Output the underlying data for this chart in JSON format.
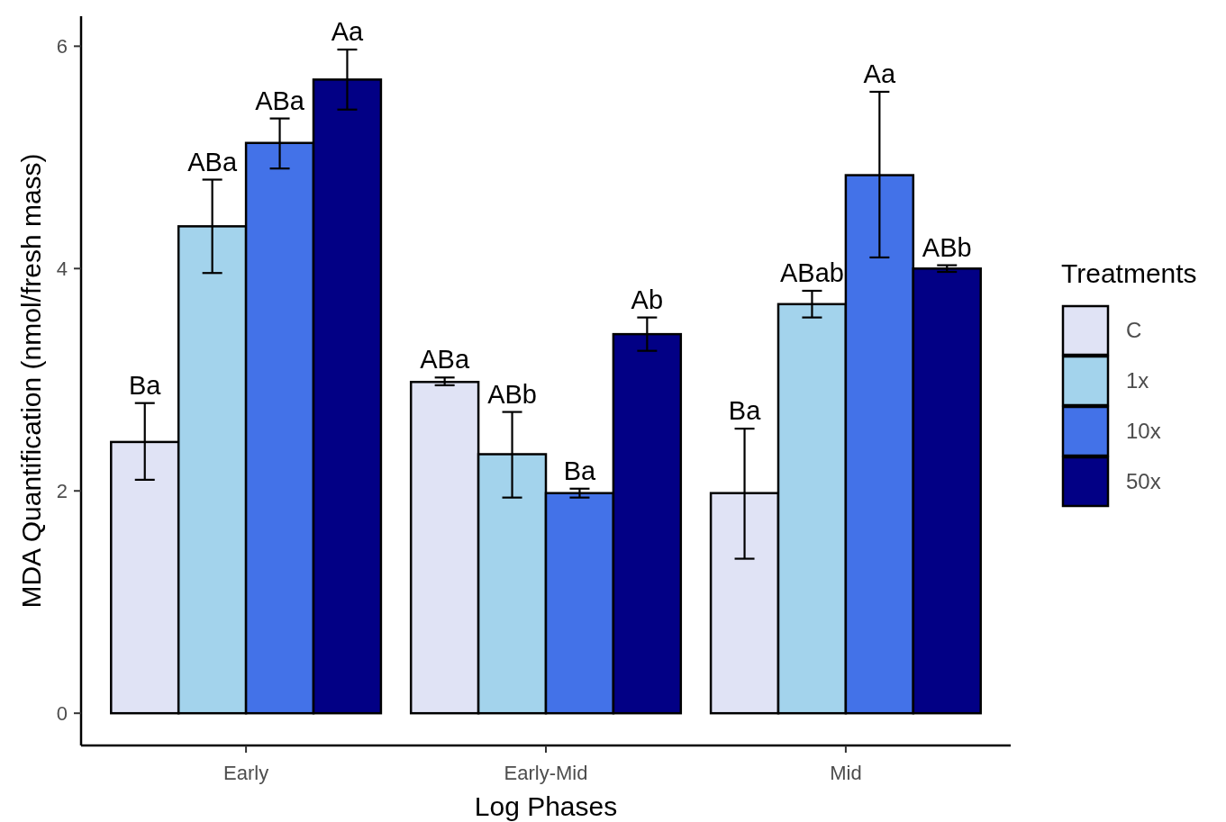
{
  "chart_data": {
    "type": "bar",
    "xlabel": "Log Phases",
    "ylabel": "MDA Quantification (nmol/fresh mass)",
    "legend_title": "Treatments",
    "legend": "right",
    "categories": [
      "Early",
      "Early-Mid",
      "Mid"
    ],
    "series": [
      {
        "name": "C",
        "color": "#e0e3f5",
        "values": [
          2.44,
          2.98,
          1.98
        ],
        "errors": [
          [
            2.1,
            2.79
          ],
          [
            2.95,
            3.02
          ],
          [
            1.39,
            2.56
          ]
        ]
      },
      {
        "name": "1x",
        "color": "#a3d3ec",
        "values": [
          4.38,
          2.33,
          3.68
        ],
        "errors": [
          [
            3.96,
            4.8
          ],
          [
            1.94,
            2.71
          ],
          [
            3.56,
            3.8
          ]
        ]
      },
      {
        "name": "10x",
        "color": "#4372e8",
        "values": [
          5.13,
          1.98,
          4.84
        ],
        "errors": [
          [
            4.9,
            5.35
          ],
          [
            1.94,
            2.02
          ],
          [
            4.1,
            5.59
          ]
        ]
      },
      {
        "name": "50x",
        "color": "#020085",
        "values": [
          5.7,
          3.41,
          4.0
        ],
        "errors": [
          [
            5.43,
            5.97
          ],
          [
            3.26,
            3.56
          ],
          [
            3.97,
            4.03
          ]
        ]
      }
    ],
    "annotations": [
      "Ba",
      "ABa",
      "ABa",
      "Aa",
      "ABa",
      "ABb",
      "Ba",
      "Ab",
      "Ba",
      "ABab",
      "Aa",
      "ABb"
    ],
    "ylim": [
      -0.29,
      6.27
    ],
    "yticks": [
      0,
      2,
      4,
      6
    ]
  }
}
